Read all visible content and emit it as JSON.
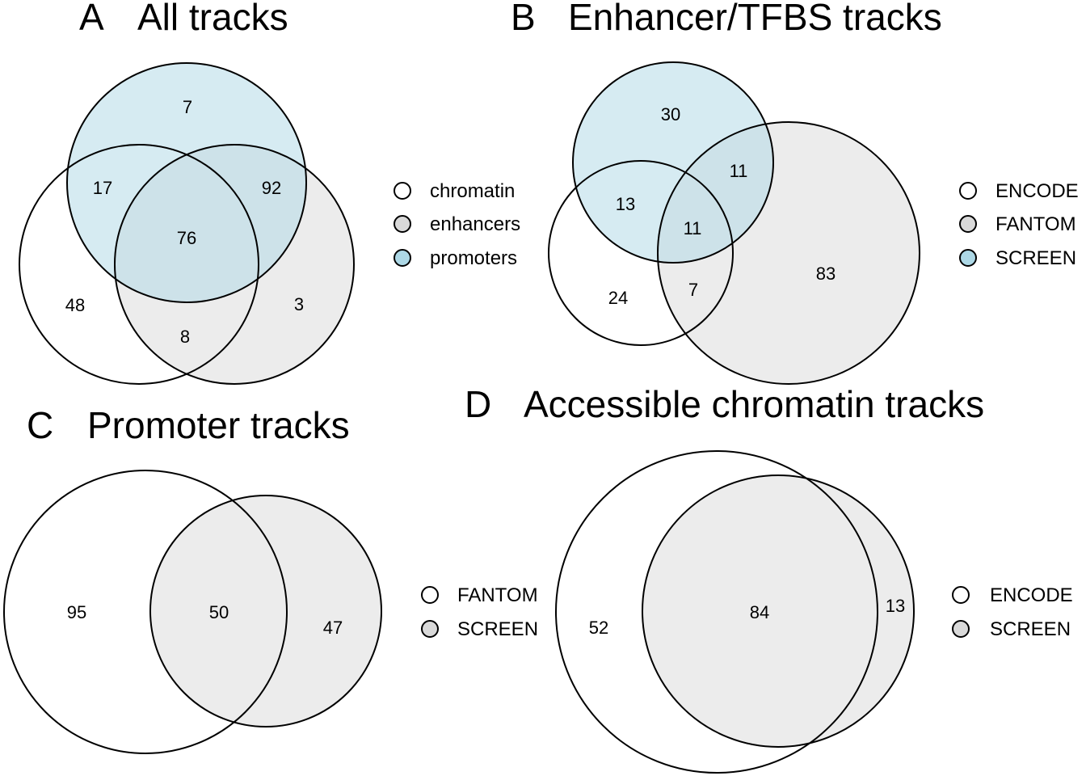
{
  "colors": {
    "white": "#ffffff",
    "grey": "#d9d9d9",
    "blue": "#add8e6",
    "outline": "#000000"
  },
  "panels": [
    {
      "letter": "A",
      "title": "All tracks",
      "sets": [
        {
          "name": "chromatin",
          "color": "#ffffff"
        },
        {
          "name": "enhancers",
          "color": "#d9d9d9"
        },
        {
          "name": "promoters",
          "color": "#add8e6"
        }
      ],
      "regions": [
        {
          "sets": [
            "promoters"
          ],
          "count": "7"
        },
        {
          "sets": [
            "chromatin",
            "promoters"
          ],
          "count": "17"
        },
        {
          "sets": [
            "enhancers",
            "promoters"
          ],
          "count": "92"
        },
        {
          "sets": [
            "chromatin",
            "enhancers",
            "promoters"
          ],
          "count": "76"
        },
        {
          "sets": [
            "chromatin"
          ],
          "count": "48"
        },
        {
          "sets": [
            "enhancers"
          ],
          "count": "3"
        },
        {
          "sets": [
            "chromatin",
            "enhancers"
          ],
          "count": "8"
        }
      ]
    },
    {
      "letter": "B",
      "title": "Enhancer/TFBS tracks",
      "sets": [
        {
          "name": "ENCODE",
          "color": "#ffffff"
        },
        {
          "name": "FANTOM",
          "color": "#d9d9d9"
        },
        {
          "name": "SCREEN",
          "color": "#add8e6"
        }
      ],
      "regions": [
        {
          "sets": [
            "SCREEN"
          ],
          "count": "30"
        },
        {
          "sets": [
            "FANTOM",
            "SCREEN"
          ],
          "count": "11"
        },
        {
          "sets": [
            "ENCODE",
            "SCREEN"
          ],
          "count": "13"
        },
        {
          "sets": [
            "ENCODE",
            "FANTOM",
            "SCREEN"
          ],
          "count": "11"
        },
        {
          "sets": [
            "ENCODE"
          ],
          "count": "24"
        },
        {
          "sets": [
            "ENCODE",
            "FANTOM"
          ],
          "count": "7"
        },
        {
          "sets": [
            "FANTOM"
          ],
          "count": "83"
        }
      ]
    },
    {
      "letter": "C",
      "title": "Promoter tracks",
      "sets": [
        {
          "name": "FANTOM",
          "color": "#ffffff"
        },
        {
          "name": "SCREEN",
          "color": "#d9d9d9"
        }
      ],
      "regions": [
        {
          "sets": [
            "FANTOM"
          ],
          "count": "95"
        },
        {
          "sets": [
            "FANTOM",
            "SCREEN"
          ],
          "count": "50"
        },
        {
          "sets": [
            "SCREEN"
          ],
          "count": "47"
        }
      ]
    },
    {
      "letter": "D",
      "title": "Accessible chromatin tracks",
      "sets": [
        {
          "name": "ENCODE",
          "color": "#ffffff"
        },
        {
          "name": "SCREEN",
          "color": "#d9d9d9"
        }
      ],
      "regions": [
        {
          "sets": [
            "ENCODE"
          ],
          "count": "52"
        },
        {
          "sets": [
            "ENCODE",
            "SCREEN"
          ],
          "count": "84"
        },
        {
          "sets": [
            "SCREEN"
          ],
          "count": "13"
        }
      ]
    }
  ]
}
